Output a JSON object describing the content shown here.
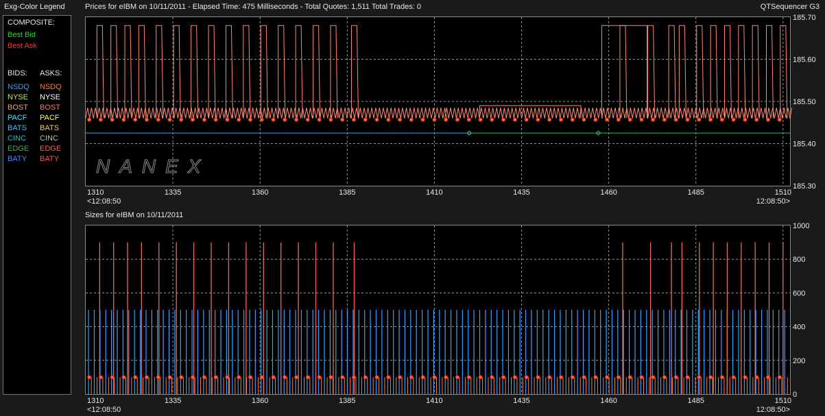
{
  "legend": {
    "title": "Exg-Color Legend",
    "composite_header": "COMPOSITE:",
    "best_bid": {
      "label": "Best Bid",
      "color": "#22dd22"
    },
    "best_ask": {
      "label": "Best Ask",
      "color": "#ff3030"
    },
    "bids_header": "BIDS:",
    "asks_header": "ASKS:",
    "bids": [
      {
        "label": "NSDQ",
        "color": "#3aa0ff"
      },
      {
        "label": "NYSE",
        "color": "#b9e86a"
      },
      {
        "label": "BOST",
        "color": "#f0a070"
      },
      {
        "label": "PACF",
        "color": "#50e0ff"
      },
      {
        "label": "BATS",
        "color": "#40c0ff"
      },
      {
        "label": "CINC",
        "color": "#3cb8b8"
      },
      {
        "label": "EDGE",
        "color": "#40b060"
      },
      {
        "label": "BATY",
        "color": "#5080ff"
      }
    ],
    "asks": [
      {
        "label": "NSDQ",
        "color": "#ff7a3a"
      },
      {
        "label": "NYSE",
        "color": "#ffffff"
      },
      {
        "label": "BOST",
        "color": "#ff7a5a"
      },
      {
        "label": "PACF",
        "color": "#ffff50"
      },
      {
        "label": "BATS",
        "color": "#ffcc60"
      },
      {
        "label": "CINC",
        "color": "#c0c0a0"
      },
      {
        "label": "EDGE",
        "color": "#ff6050"
      },
      {
        "label": "BATY",
        "color": "#ff5050"
      }
    ]
  },
  "header": {
    "price_title": "Prices for  eIBM  on  10/11/2011   -  Elapsed Time: 475 Milliseconds   -  Total Quotes: 1,511   Total Trades: 0",
    "app_title": "QTSequencer G3",
    "size_title": "Sizes for  eIBM  on  10/11/2011"
  },
  "watermark": "NANEX",
  "chart_data": [
    {
      "type": "line",
      "name": "prices",
      "x_ticks": [
        "1310",
        "1335",
        "1360",
        "1385",
        "1410",
        "1435",
        "1460",
        "1485",
        "1510"
      ],
      "x_range": [
        1310,
        1512
      ],
      "x_start_time": "<12:08:50",
      "x_end_time": "12:08:50>",
      "y_ticks": [
        "185.70",
        "185.60",
        "185.50",
        "185.40",
        "185.30"
      ],
      "ylim": [
        185.3,
        185.7
      ],
      "grid": true,
      "series": [
        {
          "role": "ask",
          "color": "#ff8a70",
          "segments": [
            {
              "x0": 1310,
              "x1": 1413,
              "pattern": "flicker",
              "base": 185.46,
              "high": 185.68,
              "spike_x": [
                1314,
                1318,
                1322,
                1326,
                1331,
                1336,
                1341,
                1346,
                1351,
                1356,
                1361,
                1366,
                1371,
                1376,
                1381,
                1387
              ]
            },
            {
              "x0": 1413,
              "x1": 1458,
              "pattern": "flicker",
              "base": 185.46,
              "high": 185.49,
              "spike_x": []
            },
            {
              "x0": 1458,
              "x1": 1512,
              "pattern": "flicker",
              "base": 185.46,
              "high": 185.68,
              "spike_x": [
                1464,
                1472,
                1478,
                1481,
                1486,
                1490,
                1494,
                1498,
                1502,
                1506,
                1510
              ]
            }
          ]
        },
        {
          "role": "bid",
          "color": "#3aa0ff",
          "points": [
            [
              1310,
              185.425
            ],
            [
              1420,
              185.425
            ]
          ]
        },
        {
          "role": "bid",
          "color": "#40b060",
          "points": [
            [
              1420,
              185.425
            ],
            [
              1512,
              185.425
            ]
          ]
        }
      ]
    },
    {
      "type": "bar",
      "name": "sizes",
      "x_ticks": [
        "1310",
        "1335",
        "1360",
        "1385",
        "1410",
        "1435",
        "1460",
        "1485",
        "1510"
      ],
      "x_range": [
        1310,
        1512
      ],
      "x_start_time": "<12:08:50",
      "x_end_time": "12:08:50>",
      "y_ticks": [
        "1000",
        "800",
        "600",
        "400",
        "200",
        "0"
      ],
      "ylim": [
        0,
        1000
      ],
      "grid": true,
      "bid_size": 500,
      "bid_color": "#3aa0ff",
      "ask_size": 100,
      "ask_color": "#ff8a40",
      "ask_spike_size": 900,
      "ask_spike_color": "#e86a60",
      "spike_x": [
        1314,
        1318,
        1322,
        1326,
        1331,
        1336,
        1341,
        1346,
        1351,
        1356,
        1361,
        1366,
        1371,
        1376,
        1381,
        1387,
        1464,
        1472,
        1478,
        1481,
        1486,
        1490,
        1494,
        1498,
        1502,
        1506,
        1510
      ]
    }
  ]
}
